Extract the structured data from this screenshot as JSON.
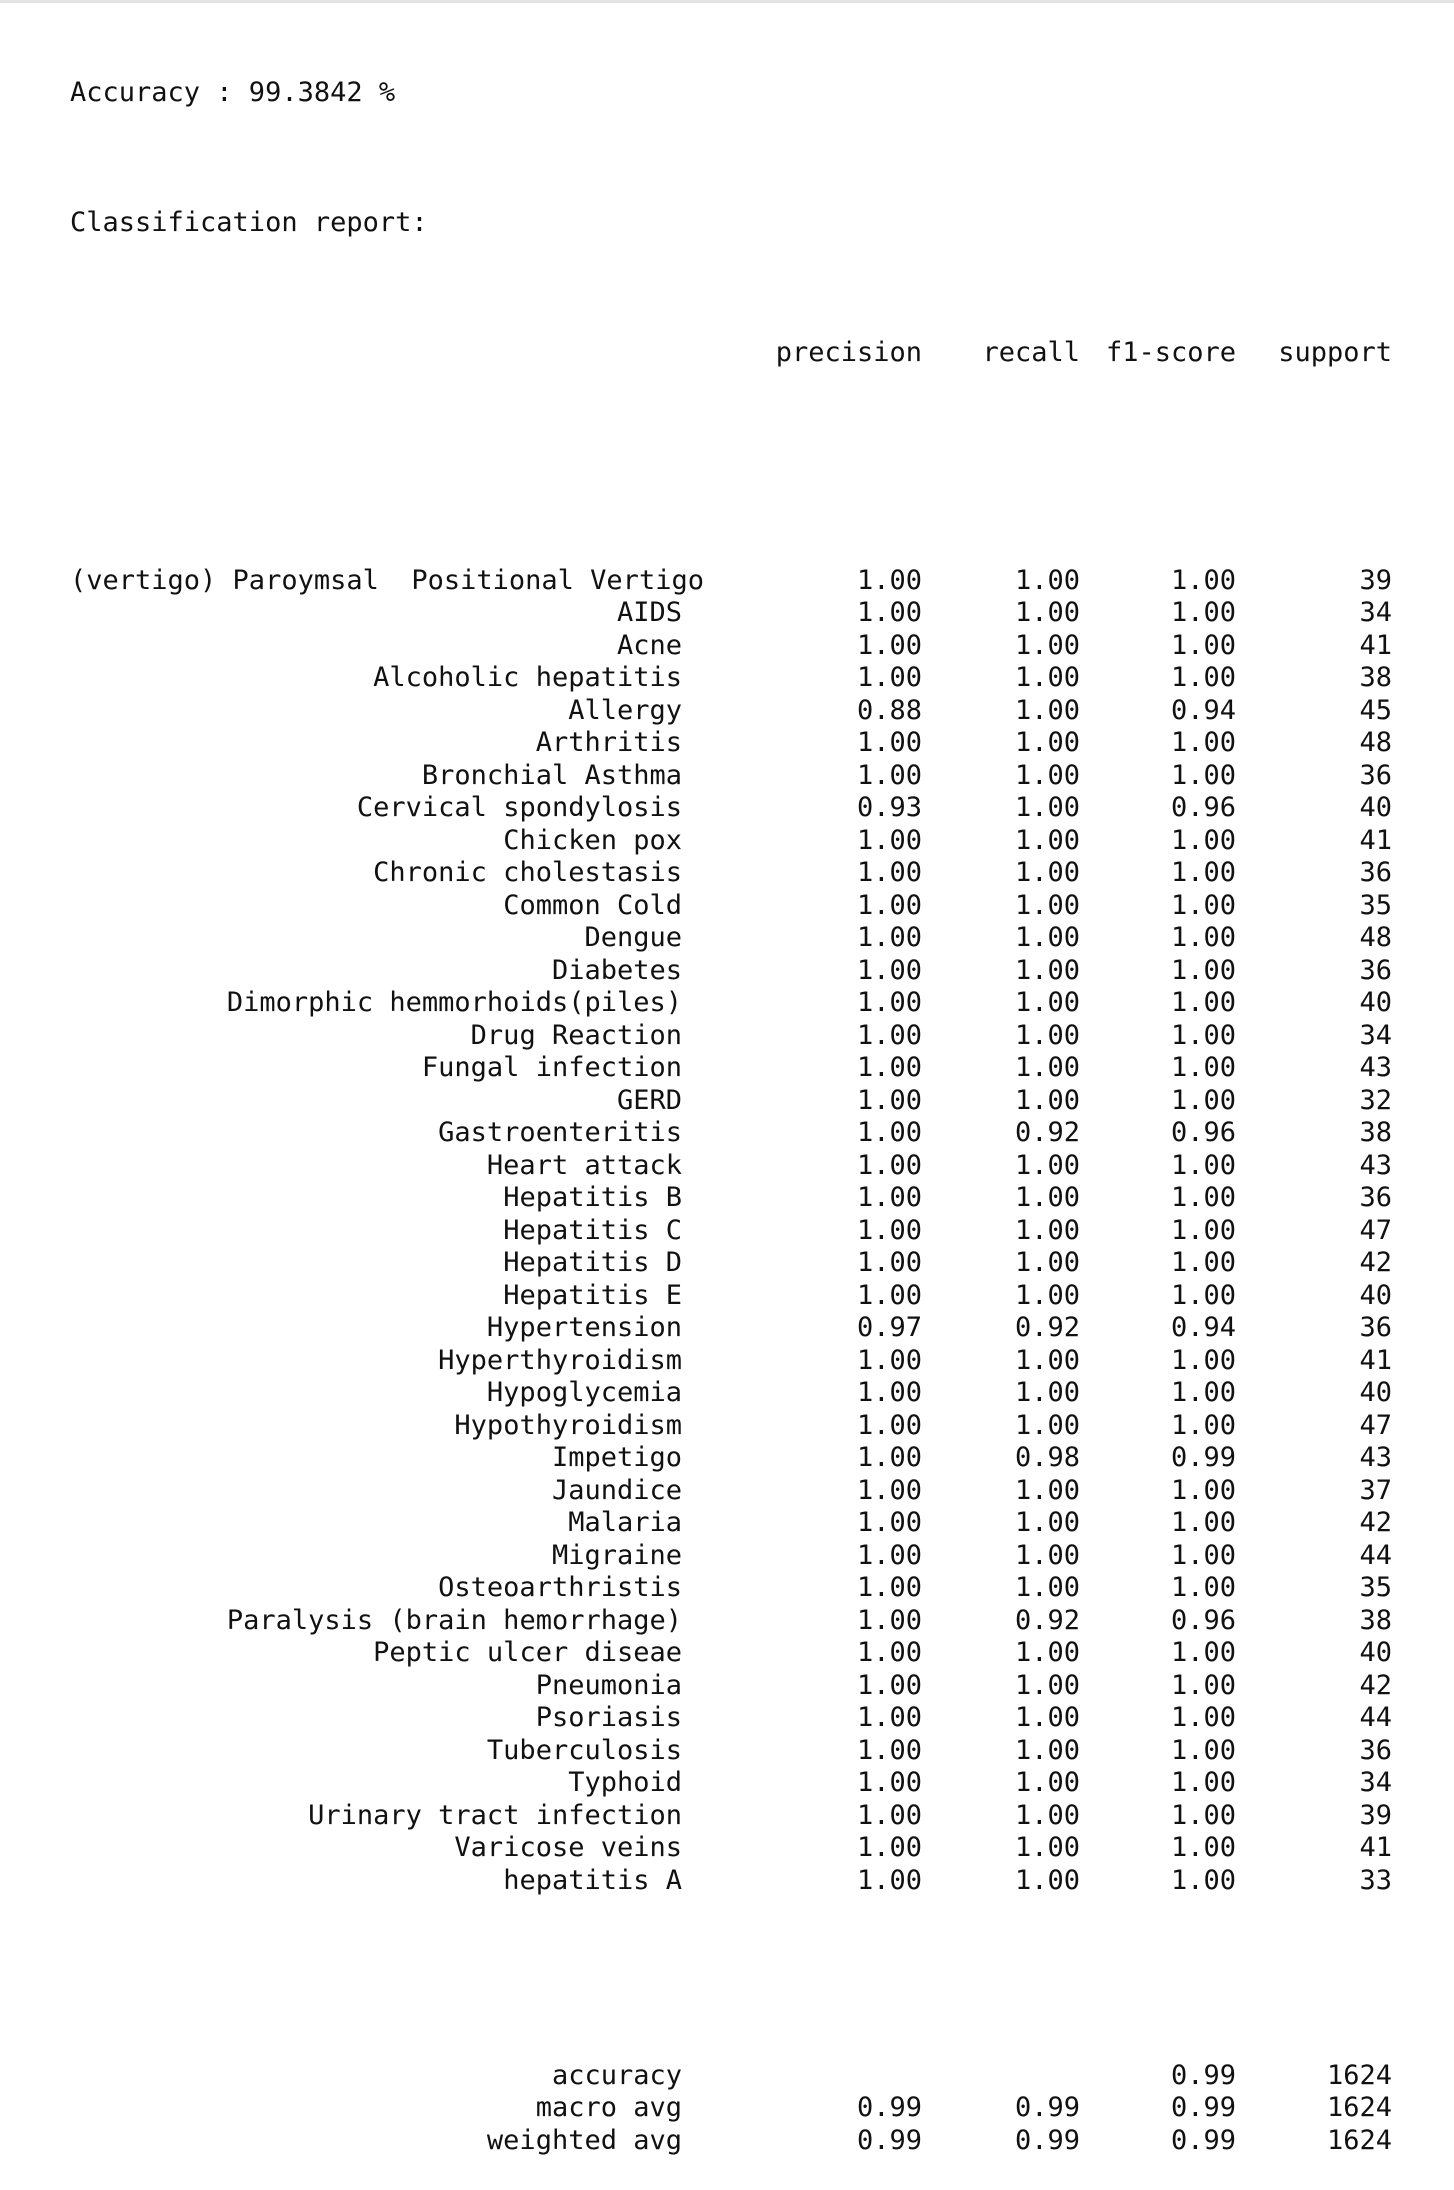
{
  "accuracy_text": "Accuracy : 99.3842 %",
  "report_title": "Classification report:",
  "headers": {
    "precision": "precision",
    "recall": "recall",
    "f1": "f1-score",
    "support": "support"
  },
  "rows": [
    {
      "label": "(vertigo) Paroymsal  Positional Vertigo",
      "precision": "1.00",
      "recall": "1.00",
      "f1": "1.00",
      "support": "39"
    },
    {
      "label": "AIDS",
      "precision": "1.00",
      "recall": "1.00",
      "f1": "1.00",
      "support": "34"
    },
    {
      "label": "Acne",
      "precision": "1.00",
      "recall": "1.00",
      "f1": "1.00",
      "support": "41"
    },
    {
      "label": "Alcoholic hepatitis",
      "precision": "1.00",
      "recall": "1.00",
      "f1": "1.00",
      "support": "38"
    },
    {
      "label": "Allergy",
      "precision": "0.88",
      "recall": "1.00",
      "f1": "0.94",
      "support": "45"
    },
    {
      "label": "Arthritis",
      "precision": "1.00",
      "recall": "1.00",
      "f1": "1.00",
      "support": "48"
    },
    {
      "label": "Bronchial Asthma",
      "precision": "1.00",
      "recall": "1.00",
      "f1": "1.00",
      "support": "36"
    },
    {
      "label": "Cervical spondylosis",
      "precision": "0.93",
      "recall": "1.00",
      "f1": "0.96",
      "support": "40"
    },
    {
      "label": "Chicken pox",
      "precision": "1.00",
      "recall": "1.00",
      "f1": "1.00",
      "support": "41"
    },
    {
      "label": "Chronic cholestasis",
      "precision": "1.00",
      "recall": "1.00",
      "f1": "1.00",
      "support": "36"
    },
    {
      "label": "Common Cold",
      "precision": "1.00",
      "recall": "1.00",
      "f1": "1.00",
      "support": "35"
    },
    {
      "label": "Dengue",
      "precision": "1.00",
      "recall": "1.00",
      "f1": "1.00",
      "support": "48"
    },
    {
      "label": "Diabetes",
      "precision": "1.00",
      "recall": "1.00",
      "f1": "1.00",
      "support": "36"
    },
    {
      "label": "Dimorphic hemmorhoids(piles)",
      "precision": "1.00",
      "recall": "1.00",
      "f1": "1.00",
      "support": "40"
    },
    {
      "label": "Drug Reaction",
      "precision": "1.00",
      "recall": "1.00",
      "f1": "1.00",
      "support": "34"
    },
    {
      "label": "Fungal infection",
      "precision": "1.00",
      "recall": "1.00",
      "f1": "1.00",
      "support": "43"
    },
    {
      "label": "GERD",
      "precision": "1.00",
      "recall": "1.00",
      "f1": "1.00",
      "support": "32"
    },
    {
      "label": "Gastroenteritis",
      "precision": "1.00",
      "recall": "0.92",
      "f1": "0.96",
      "support": "38"
    },
    {
      "label": "Heart attack",
      "precision": "1.00",
      "recall": "1.00",
      "f1": "1.00",
      "support": "43"
    },
    {
      "label": "Hepatitis B",
      "precision": "1.00",
      "recall": "1.00",
      "f1": "1.00",
      "support": "36"
    },
    {
      "label": "Hepatitis C",
      "precision": "1.00",
      "recall": "1.00",
      "f1": "1.00",
      "support": "47"
    },
    {
      "label": "Hepatitis D",
      "precision": "1.00",
      "recall": "1.00",
      "f1": "1.00",
      "support": "42"
    },
    {
      "label": "Hepatitis E",
      "precision": "1.00",
      "recall": "1.00",
      "f1": "1.00",
      "support": "40"
    },
    {
      "label": "Hypertension",
      "precision": "0.97",
      "recall": "0.92",
      "f1": "0.94",
      "support": "36"
    },
    {
      "label": "Hyperthyroidism",
      "precision": "1.00",
      "recall": "1.00",
      "f1": "1.00",
      "support": "41"
    },
    {
      "label": "Hypoglycemia",
      "precision": "1.00",
      "recall": "1.00",
      "f1": "1.00",
      "support": "40"
    },
    {
      "label": "Hypothyroidism",
      "precision": "1.00",
      "recall": "1.00",
      "f1": "1.00",
      "support": "47"
    },
    {
      "label": "Impetigo",
      "precision": "1.00",
      "recall": "0.98",
      "f1": "0.99",
      "support": "43"
    },
    {
      "label": "Jaundice",
      "precision": "1.00",
      "recall": "1.00",
      "f1": "1.00",
      "support": "37"
    },
    {
      "label": "Malaria",
      "precision": "1.00",
      "recall": "1.00",
      "f1": "1.00",
      "support": "42"
    },
    {
      "label": "Migraine",
      "precision": "1.00",
      "recall": "1.00",
      "f1": "1.00",
      "support": "44"
    },
    {
      "label": "Osteoarthristis",
      "precision": "1.00",
      "recall": "1.00",
      "f1": "1.00",
      "support": "35"
    },
    {
      "label": "Paralysis (brain hemorrhage)",
      "precision": "1.00",
      "recall": "0.92",
      "f1": "0.96",
      "support": "38"
    },
    {
      "label": "Peptic ulcer diseae",
      "precision": "1.00",
      "recall": "1.00",
      "f1": "1.00",
      "support": "40"
    },
    {
      "label": "Pneumonia",
      "precision": "1.00",
      "recall": "1.00",
      "f1": "1.00",
      "support": "42"
    },
    {
      "label": "Psoriasis",
      "precision": "1.00",
      "recall": "1.00",
      "f1": "1.00",
      "support": "44"
    },
    {
      "label": "Tuberculosis",
      "precision": "1.00",
      "recall": "1.00",
      "f1": "1.00",
      "support": "36"
    },
    {
      "label": "Typhoid",
      "precision": "1.00",
      "recall": "1.00",
      "f1": "1.00",
      "support": "34"
    },
    {
      "label": "Urinary tract infection",
      "precision": "1.00",
      "recall": "1.00",
      "f1": "1.00",
      "support": "39"
    },
    {
      "label": "Varicose veins",
      "precision": "1.00",
      "recall": "1.00",
      "f1": "1.00",
      "support": "41"
    },
    {
      "label": "hepatitis A",
      "precision": "1.00",
      "recall": "1.00",
      "f1": "1.00",
      "support": "33"
    }
  ],
  "summary": [
    {
      "label": "accuracy",
      "precision": "",
      "recall": "",
      "f1": "0.99",
      "support": "1624"
    },
    {
      "label": "macro avg",
      "precision": "0.99",
      "recall": "0.99",
      "f1": "0.99",
      "support": "1624"
    },
    {
      "label": "weighted avg",
      "precision": "0.99",
      "recall": "0.99",
      "f1": "0.99",
      "support": "1624"
    }
  ]
}
